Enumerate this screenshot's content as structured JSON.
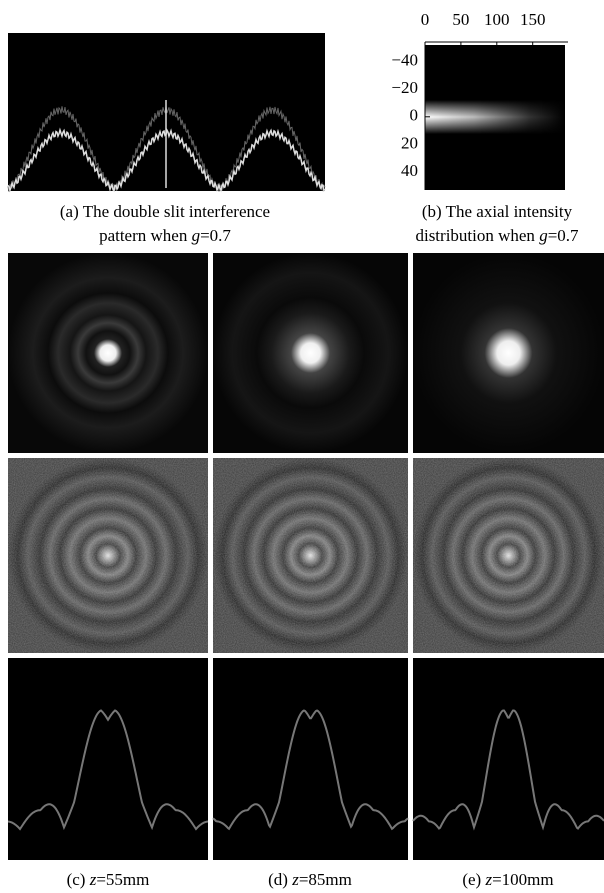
{
  "panel_a": {
    "caption_lines": [
      [
        "(a) The double slit interference"
      ],
      [
        "pattern when ",
        "g",
        "=0.7"
      ]
    ]
  },
  "panel_b": {
    "caption_lines": [
      [
        "(b) The axial intensity"
      ],
      [
        "distribution when  ",
        "g",
        "=0.7"
      ]
    ],
    "xlim": [
      0,
      195
    ],
    "xticks": [
      0,
      50,
      100,
      150
    ],
    "ylim": [
      -52,
      53
    ],
    "yticks": [
      {
        "value": -40,
        "label": "−40"
      },
      {
        "value": -20,
        "label": "−20"
      },
      0,
      20,
      40
    ]
  },
  "bottom_captions": [
    [
      "(c) ",
      "z",
      "=55mm"
    ],
    [
      "(d) ",
      "z",
      "=85mm"
    ],
    [
      "(e) ",
      "z",
      "=100mm"
    ]
  ]
}
